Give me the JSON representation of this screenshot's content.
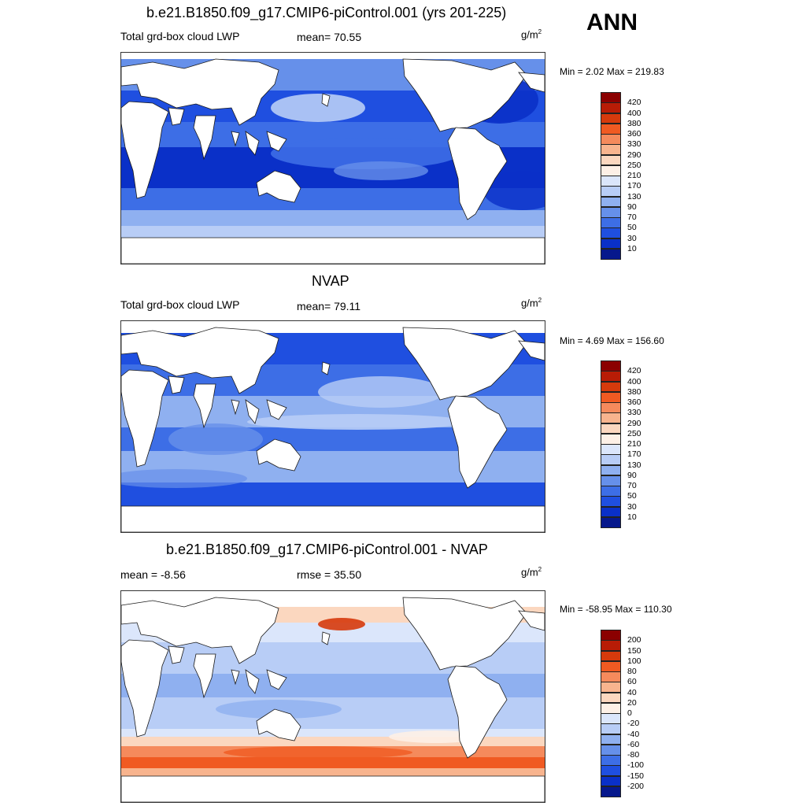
{
  "season": "ANN",
  "panels": [
    {
      "title": "b.e21.B1850.f09_g17.CMIP6-piControl.001 (yrs 201-225)",
      "left_label": "Total grd-box cloud LWP",
      "center_label": "mean=  70.55",
      "units": "g/m",
      "units_sup": "2",
      "minmax": "Min =   2.02 Max = 219.83",
      "kind": "model"
    },
    {
      "title": "NVAP",
      "left_label": "Total grd-box cloud LWP",
      "center_label": "mean=  79.11",
      "units": "g/m",
      "units_sup": "2",
      "minmax": "Min =   4.69 Max = 156.60",
      "kind": "obs"
    },
    {
      "title": "b.e21.B1850.f09_g17.CMIP6-piControl.001 - NVAP",
      "left_label": "mean =  -8.56",
      "center_label": "rmse =  35.50",
      "units": "g/m",
      "units_sup": "2",
      "minmax": "Min = -58.95 Max = 110.30",
      "kind": "diff"
    }
  ],
  "legend_abs": {
    "labels": [
      "420",
      "400",
      "380",
      "360",
      "330",
      "290",
      "250",
      "210",
      "170",
      "130",
      "90",
      "70",
      "50",
      "30",
      "10"
    ],
    "colors": [
      "#8b0000",
      "#b81c06",
      "#d63a0c",
      "#f05a22",
      "#f58a5c",
      "#f8b48e",
      "#fbd7bf",
      "#fdf0e6",
      "#dbe6fb",
      "#b8cdf6",
      "#8fb0f0",
      "#6690ea",
      "#3d6ee6",
      "#1f4fe0",
      "#0a30c8",
      "#06188c"
    ]
  },
  "legend_diff": {
    "labels": [
      "200",
      "150",
      "100",
      "80",
      "60",
      "40",
      "20",
      "0",
      "-20",
      "-40",
      "-60",
      "-80",
      "-100",
      "-150",
      "-200"
    ],
    "colors": [
      "#8b0000",
      "#b81c06",
      "#d63a0c",
      "#f05a22",
      "#f58a5c",
      "#f8b48e",
      "#fbd7bf",
      "#fdf0e6",
      "#dbe6fb",
      "#b8cdf6",
      "#8fb0f0",
      "#6690ea",
      "#3d6ee6",
      "#1f4fe0",
      "#0a30c8",
      "#06188c"
    ]
  },
  "map_colors": {
    "land": "#ffffff",
    "coast": "#1a1a1a",
    "model_bands": [
      "#b8cdf6",
      "#8fb0f0",
      "#6690ea",
      "#3d6ee6",
      "#1f4fe0",
      "#0a30c8"
    ],
    "obs_bands": [
      "#b8cdf6",
      "#8fb0f0",
      "#6690ea",
      "#3d6ee6",
      "#1f4fe0"
    ],
    "diff_neg": [
      "#dbe6fb",
      "#b8cdf6",
      "#8fb0f0"
    ],
    "diff_pos": [
      "#fdf0e6",
      "#fbd7bf",
      "#f8b48e",
      "#f58a5c",
      "#f05a22",
      "#d63a0c"
    ]
  }
}
